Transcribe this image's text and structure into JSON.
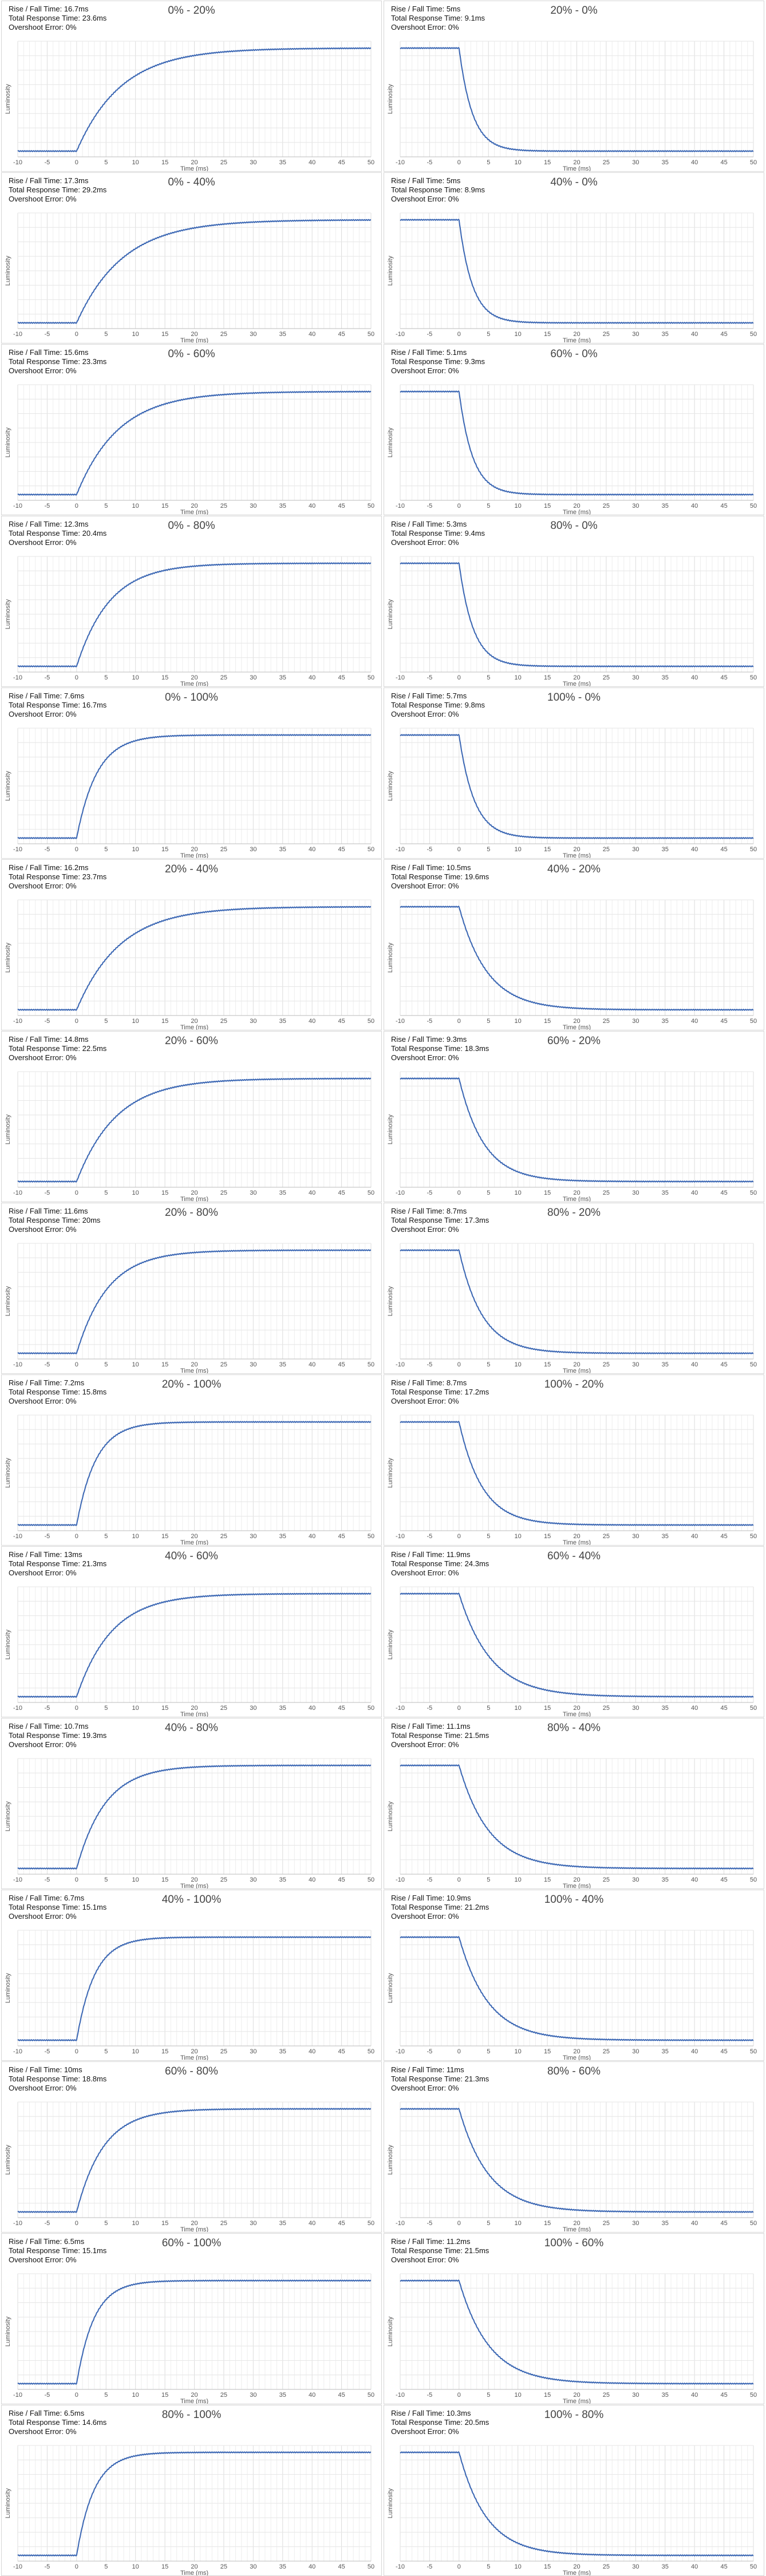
{
  "common": {
    "ylabel": "Luminosity",
    "xlabel": "Time (ms)",
    "rise_label": "Rise / Fall Time:",
    "total_label": "Total Response Time:",
    "overshoot_label": "Overshoot Error:",
    "line_color": "#3a66b3"
  },
  "chart_data": [
    {
      "type": "line",
      "title": "0% - 20%",
      "rise_fall": "16.7ms",
      "total": "23.6ms",
      "overshoot": "0%",
      "direction": "rise",
      "x_ticks": [
        "-10",
        "-5",
        "0",
        "5",
        "10",
        "15",
        "20",
        "25",
        "30",
        "35",
        "40",
        "45",
        "50"
      ],
      "xlim": [
        -10,
        50
      ]
    },
    {
      "type": "line",
      "title": "20% - 0%",
      "rise_fall": "5ms",
      "total": "9.1ms",
      "overshoot": "0%",
      "direction": "fall",
      "x_ticks": [
        "-10",
        "-5",
        "0",
        "5",
        "10",
        "15",
        "20",
        "25",
        "30",
        "35",
        "40",
        "45",
        "50"
      ],
      "xlim": [
        -10,
        50
      ]
    },
    {
      "type": "line",
      "title": "0% - 40%",
      "rise_fall": "17.3ms",
      "total": "29.2ms",
      "overshoot": "0%",
      "direction": "rise",
      "x_ticks": [
        "-10",
        "-5",
        "0",
        "5",
        "10",
        "15",
        "20",
        "25",
        "30",
        "35",
        "40",
        "45",
        "50"
      ],
      "xlim": [
        -10,
        50
      ]
    },
    {
      "type": "line",
      "title": "40% - 0%",
      "rise_fall": "5ms",
      "total": "8.9ms",
      "overshoot": "0%",
      "direction": "fall",
      "x_ticks": [
        "-10",
        "-5",
        "0",
        "5",
        "10",
        "15",
        "20",
        "25",
        "30",
        "35",
        "40",
        "45",
        "50"
      ],
      "xlim": [
        -10,
        50
      ]
    },
    {
      "type": "line",
      "title": "0% - 60%",
      "rise_fall": "15.6ms",
      "total": "23.3ms",
      "overshoot": "0%",
      "direction": "rise",
      "x_ticks": [
        "-10",
        "-5",
        "0",
        "5",
        "10",
        "15",
        "20",
        "25",
        "30",
        "35",
        "40",
        "45",
        "50"
      ],
      "xlim": [
        -10,
        50
      ]
    },
    {
      "type": "line",
      "title": "60% - 0%",
      "rise_fall": "5.1ms",
      "total": "9.3ms",
      "overshoot": "0%",
      "direction": "fall",
      "x_ticks": [
        "-10",
        "-5",
        "0",
        "5",
        "10",
        "15",
        "20",
        "25",
        "30",
        "35",
        "40",
        "45",
        "50"
      ],
      "xlim": [
        -10,
        50
      ]
    },
    {
      "type": "line",
      "title": "0% - 80%",
      "rise_fall": "12.3ms",
      "total": "20.4ms",
      "overshoot": "0%",
      "direction": "rise",
      "x_ticks": [
        "-10",
        "-5",
        "0",
        "5",
        "10",
        "15",
        "20",
        "25",
        "30",
        "35",
        "40",
        "45",
        "50"
      ],
      "xlim": [
        -10,
        50
      ]
    },
    {
      "type": "line",
      "title": "80% - 0%",
      "rise_fall": "5.3ms",
      "total": "9.4ms",
      "overshoot": "0%",
      "direction": "fall",
      "x_ticks": [
        "-10",
        "-5",
        "0",
        "5",
        "10",
        "15",
        "20",
        "25",
        "30",
        "35",
        "40",
        "45",
        "50"
      ],
      "xlim": [
        -10,
        50
      ]
    },
    {
      "type": "line",
      "title": "0% - 100%",
      "rise_fall": "7.6ms",
      "total": "16.7ms",
      "overshoot": "0%",
      "direction": "rise",
      "x_ticks": [
        "-10",
        "-5",
        "0",
        "5",
        "10",
        "15",
        "20",
        "25",
        "30",
        "35",
        "40",
        "45",
        "50"
      ],
      "xlim": [
        -10,
        50
      ]
    },
    {
      "type": "line",
      "title": "100% - 0%",
      "rise_fall": "5.7ms",
      "total": "9.8ms",
      "overshoot": "0%",
      "direction": "fall",
      "x_ticks": [
        "-10",
        "-5",
        "0",
        "5",
        "10",
        "15",
        "20",
        "25",
        "30",
        "35",
        "40",
        "45",
        "50"
      ],
      "xlim": [
        -10,
        50
      ]
    },
    {
      "type": "line",
      "title": "20% - 40%",
      "rise_fall": "16.2ms",
      "total": "23.7ms",
      "overshoot": "0%",
      "direction": "rise",
      "x_ticks": [
        "-10",
        "-5",
        "0",
        "5",
        "10",
        "15",
        "20",
        "25",
        "30",
        "35",
        "40",
        "45",
        "50"
      ],
      "xlim": [
        -10,
        50
      ]
    },
    {
      "type": "line",
      "title": "40% - 20%",
      "rise_fall": "10.5ms",
      "total": "19.6ms",
      "overshoot": "0%",
      "direction": "fall",
      "x_ticks": [
        "-10",
        "-5",
        "0",
        "5",
        "10",
        "15",
        "20",
        "25",
        "30",
        "35",
        "40",
        "45",
        "50"
      ],
      "xlim": [
        -10,
        50
      ]
    },
    {
      "type": "line",
      "title": "20% - 60%",
      "rise_fall": "14.8ms",
      "total": "22.5ms",
      "overshoot": "0%",
      "direction": "rise",
      "x_ticks": [
        "-10",
        "-5",
        "0",
        "5",
        "10",
        "15",
        "20",
        "25",
        "30",
        "35",
        "40",
        "45",
        "50"
      ],
      "xlim": [
        -10,
        50
      ]
    },
    {
      "type": "line",
      "title": "60% - 20%",
      "rise_fall": "9.3ms",
      "total": "18.3ms",
      "overshoot": "0%",
      "direction": "fall",
      "x_ticks": [
        "-10",
        "-5",
        "0",
        "5",
        "10",
        "15",
        "20",
        "25",
        "30",
        "35",
        "40",
        "45",
        "50"
      ],
      "xlim": [
        -10,
        50
      ]
    },
    {
      "type": "line",
      "title": "20% - 80%",
      "rise_fall": "11.6ms",
      "total": "20ms",
      "overshoot": "0%",
      "direction": "rise",
      "x_ticks": [
        "-10",
        "-5",
        "0",
        "5",
        "10",
        "15",
        "20",
        "25",
        "30",
        "35",
        "40",
        "45",
        "50"
      ],
      "xlim": [
        -10,
        50
      ]
    },
    {
      "type": "line",
      "title": "80% - 20%",
      "rise_fall": "8.7ms",
      "total": "17.3ms",
      "overshoot": "0%",
      "direction": "fall",
      "x_ticks": [
        "-10",
        "-5",
        "0",
        "5",
        "10",
        "15",
        "20",
        "25",
        "30",
        "35",
        "40",
        "45",
        "50"
      ],
      "xlim": [
        -10,
        50
      ]
    },
    {
      "type": "line",
      "title": "20% - 100%",
      "rise_fall": "7.2ms",
      "total": "15.8ms",
      "overshoot": "0%",
      "direction": "rise",
      "x_ticks": [
        "-10",
        "-5",
        "0",
        "5",
        "10",
        "15",
        "20",
        "25",
        "30",
        "35",
        "40",
        "45",
        "50"
      ],
      "xlim": [
        -10,
        50
      ]
    },
    {
      "type": "line",
      "title": "100% - 20%",
      "rise_fall": "8.7ms",
      "total": "17.2ms",
      "overshoot": "0%",
      "direction": "fall",
      "x_ticks": [
        "-10",
        "-5",
        "0",
        "5",
        "10",
        "15",
        "20",
        "25",
        "30",
        "35",
        "40",
        "45",
        "50"
      ],
      "xlim": [
        -10,
        50
      ]
    },
    {
      "type": "line",
      "title": "40% - 60%",
      "rise_fall": "13ms",
      "total": "21.3ms",
      "overshoot": "0%",
      "direction": "rise",
      "x_ticks": [
        "-10",
        "-5",
        "0",
        "5",
        "10",
        "15",
        "20",
        "25",
        "30",
        "35",
        "40",
        "45",
        "50"
      ],
      "xlim": [
        -10,
        50
      ]
    },
    {
      "type": "line",
      "title": "60% - 40%",
      "rise_fall": "11.9ms",
      "total": "24.3ms",
      "overshoot": "0%",
      "direction": "fall",
      "x_ticks": [
        "-10",
        "-5",
        "0",
        "5",
        "10",
        "15",
        "20",
        "25",
        "30",
        "35",
        "40",
        "45",
        "50"
      ],
      "xlim": [
        -10,
        50
      ]
    },
    {
      "type": "line",
      "title": "40% - 80%",
      "rise_fall": "10.7ms",
      "total": "19.3ms",
      "overshoot": "0%",
      "direction": "rise",
      "x_ticks": [
        "-10",
        "-5",
        "0",
        "5",
        "10",
        "15",
        "20",
        "25",
        "30",
        "35",
        "40",
        "45",
        "50"
      ],
      "xlim": [
        -10,
        50
      ]
    },
    {
      "type": "line",
      "title": "80% - 40%",
      "rise_fall": "11.1ms",
      "total": "21.5ms",
      "overshoot": "0%",
      "direction": "fall",
      "x_ticks": [
        "-10",
        "-5",
        "0",
        "5",
        "10",
        "15",
        "20",
        "25",
        "30",
        "35",
        "40",
        "45",
        "50"
      ],
      "xlim": [
        -10,
        50
      ]
    },
    {
      "type": "line",
      "title": "40% - 100%",
      "rise_fall": "6.7ms",
      "total": "15.1ms",
      "overshoot": "0%",
      "direction": "rise",
      "x_ticks": [
        "-10",
        "-5",
        "0",
        "5",
        "10",
        "15",
        "20",
        "25",
        "30",
        "35",
        "40",
        "45",
        "50"
      ],
      "xlim": [
        -10,
        50
      ]
    },
    {
      "type": "line",
      "title": "100% - 40%",
      "rise_fall": "10.9ms",
      "total": "21.2ms",
      "overshoot": "0%",
      "direction": "fall",
      "x_ticks": [
        "-10",
        "-5",
        "0",
        "5",
        "10",
        "15",
        "20",
        "25",
        "30",
        "35",
        "40",
        "45",
        "50"
      ],
      "xlim": [
        -10,
        50
      ]
    },
    {
      "type": "line",
      "title": "60% - 80%",
      "rise_fall": "10ms",
      "total": "18.8ms",
      "overshoot": "0%",
      "direction": "rise",
      "x_ticks": [
        "-10",
        "-5",
        "0",
        "5",
        "10",
        "15",
        "20",
        "25",
        "30",
        "35",
        "40",
        "45",
        "50"
      ],
      "xlim": [
        -10,
        50
      ]
    },
    {
      "type": "line",
      "title": "80% - 60%",
      "rise_fall": "11ms",
      "total": "21.3ms",
      "overshoot": "0%",
      "direction": "fall",
      "x_ticks": [
        "-10",
        "-5",
        "0",
        "5",
        "10",
        "15",
        "20",
        "25",
        "30",
        "35",
        "40",
        "45",
        "50"
      ],
      "xlim": [
        -10,
        50
      ]
    },
    {
      "type": "line",
      "title": "60% - 100%",
      "rise_fall": "6.5ms",
      "total": "15.1ms",
      "overshoot": "0%",
      "direction": "rise",
      "x_ticks": [
        "-10",
        "-5",
        "0",
        "5",
        "10",
        "15",
        "20",
        "25",
        "30",
        "35",
        "40",
        "45",
        "50"
      ],
      "xlim": [
        -10,
        50
      ]
    },
    {
      "type": "line",
      "title": "100% - 60%",
      "rise_fall": "11.2ms",
      "total": "21.5ms",
      "overshoot": "0%",
      "direction": "fall",
      "x_ticks": [
        "-10",
        "-5",
        "0",
        "5",
        "10",
        "15",
        "20",
        "25",
        "30",
        "35",
        "40",
        "45",
        "50"
      ],
      "xlim": [
        -10,
        50
      ]
    },
    {
      "type": "line",
      "title": "80% - 100%",
      "rise_fall": "6.5ms",
      "total": "14.6ms",
      "overshoot": "0%",
      "direction": "rise",
      "x_ticks": [
        "-10",
        "-5",
        "0",
        "5",
        "10",
        "15",
        "20",
        "25",
        "30",
        "35",
        "40",
        "45",
        "50"
      ],
      "xlim": [
        -10,
        50
      ]
    },
    {
      "type": "line",
      "title": "100% - 80%",
      "rise_fall": "10.3ms",
      "total": "20.5ms",
      "overshoot": "0%",
      "direction": "fall",
      "x_ticks": [
        "-10",
        "-5",
        "0",
        "5",
        "10",
        "15",
        "20",
        "25",
        "30",
        "35",
        "40",
        "45",
        "50"
      ],
      "xlim": [
        -10,
        50
      ]
    }
  ]
}
